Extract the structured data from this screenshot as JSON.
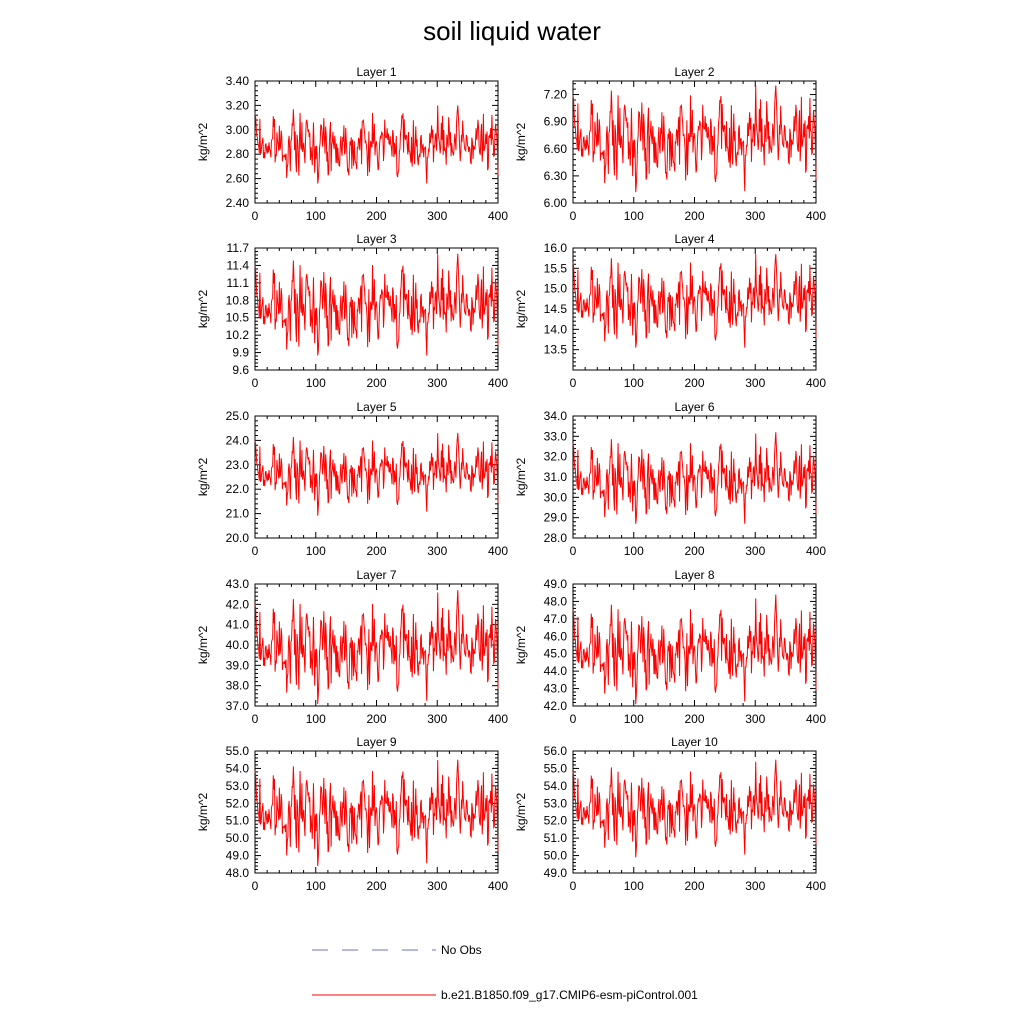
{
  "title": "soil liquid water",
  "legend": {
    "obs_label": "No Obs",
    "case_label": "b.e21.B1850.f09_g17.CMIP6-esm-piControl.001",
    "obs_color": "#6f6fc8",
    "case_color": "#ff0000"
  },
  "chart_data": [
    {
      "type": "line",
      "title": "Layer 1",
      "ylabel": "kg/m^2",
      "xlim": [
        0,
        400
      ],
      "ylim": [
        2.4,
        3.4
      ],
      "xticks": [
        0,
        100,
        200,
        300,
        400
      ],
      "ytick_labels": [
        "2.40",
        "2.60",
        "2.80",
        "3.00",
        "3.20",
        "3.40"
      ],
      "series": [
        {
          "color": "#ff0000",
          "mean": 2.88,
          "sd": 0.11,
          "min": 2.56,
          "max": 3.2,
          "n": 400
        }
      ]
    },
    {
      "type": "line",
      "title": "Layer 2",
      "ylabel": "kg/m^2",
      "xlim": [
        0,
        400
      ],
      "ylim": [
        6.0,
        7.35
      ],
      "xticks": [
        0,
        100,
        200,
        300,
        400
      ],
      "ytick_labels": [
        "6.00",
        "6.30",
        "6.60",
        "6.90",
        "7.20"
      ],
      "series": [
        {
          "color": "#ff0000",
          "mean": 6.72,
          "sd": 0.2,
          "min": 6.12,
          "max": 7.3,
          "n": 400
        }
      ]
    },
    {
      "type": "line",
      "title": "Layer 3",
      "ylabel": "kg/m^2",
      "xlim": [
        0,
        400
      ],
      "ylim": [
        9.6,
        11.7
      ],
      "xticks": [
        0,
        100,
        200,
        300,
        400
      ],
      "ytick_labels": [
        "9.6",
        "9.9",
        "10.2",
        "10.5",
        "10.8",
        "11.1",
        "11.4",
        "11.7"
      ],
      "series": [
        {
          "color": "#ff0000",
          "mean": 10.7,
          "sd": 0.3,
          "min": 9.85,
          "max": 11.6,
          "n": 400
        }
      ]
    },
    {
      "type": "line",
      "title": "Layer 4",
      "ylabel": "kg/m^2",
      "xlim": [
        0,
        400
      ],
      "ylim": [
        13.0,
        16.0
      ],
      "xticks": [
        0,
        100,
        200,
        300,
        400
      ],
      "ytick_labels": [
        "13.5",
        "14.0",
        "14.5",
        "15.0",
        "15.5",
        "16.0"
      ],
      "series": [
        {
          "color": "#ff0000",
          "mean": 14.7,
          "sd": 0.4,
          "min": 13.55,
          "max": 15.85,
          "n": 400
        }
      ]
    },
    {
      "type": "line",
      "title": "Layer 5",
      "ylabel": "kg/m^2",
      "xlim": [
        0,
        400
      ],
      "ylim": [
        20.0,
        25.0
      ],
      "xticks": [
        0,
        100,
        200,
        300,
        400
      ],
      "ytick_labels": [
        "20.0",
        "21.0",
        "22.0",
        "23.0",
        "24.0",
        "25.0"
      ],
      "series": [
        {
          "color": "#ff0000",
          "mean": 22.7,
          "sd": 0.55,
          "min": 20.9,
          "max": 24.3,
          "n": 400
        }
      ]
    },
    {
      "type": "line",
      "title": "Layer 6",
      "ylabel": "kg/m^2",
      "xlim": [
        0,
        400
      ],
      "ylim": [
        28.0,
        34.0
      ],
      "xticks": [
        0,
        100,
        200,
        300,
        400
      ],
      "ytick_labels": [
        "28.0",
        "29.0",
        "30.0",
        "31.0",
        "32.0",
        "33.0",
        "34.0"
      ],
      "series": [
        {
          "color": "#ff0000",
          "mean": 30.9,
          "sd": 0.75,
          "min": 28.7,
          "max": 33.2,
          "n": 400
        }
      ]
    },
    {
      "type": "line",
      "title": "Layer 7",
      "ylabel": "kg/m^2",
      "xlim": [
        0,
        400
      ],
      "ylim": [
        37.0,
        43.0
      ],
      "xticks": [
        0,
        100,
        200,
        300,
        400
      ],
      "ytick_labels": [
        "37.0",
        "38.0",
        "39.0",
        "40.0",
        "41.0",
        "42.0",
        "43.0"
      ],
      "series": [
        {
          "color": "#ff0000",
          "mean": 39.9,
          "sd": 0.9,
          "min": 37.1,
          "max": 42.7,
          "n": 400
        }
      ]
    },
    {
      "type": "line",
      "title": "Layer 8",
      "ylabel": "kg/m^2",
      "xlim": [
        0,
        400
      ],
      "ylim": [
        42.0,
        49.0
      ],
      "xticks": [
        0,
        100,
        200,
        300,
        400
      ],
      "ytick_labels": [
        "42.0",
        "43.0",
        "44.0",
        "45.0",
        "46.0",
        "47.0",
        "48.0",
        "49.0"
      ],
      "series": [
        {
          "color": "#ff0000",
          "mean": 45.2,
          "sd": 1.0,
          "min": 42.1,
          "max": 48.4,
          "n": 400
        }
      ]
    },
    {
      "type": "line",
      "title": "Layer 9",
      "ylabel": "kg/m^2",
      "xlim": [
        0,
        400
      ],
      "ylim": [
        48.0,
        55.0
      ],
      "xticks": [
        0,
        100,
        200,
        300,
        400
      ],
      "ytick_labels": [
        "48.0",
        "49.0",
        "50.0",
        "51.0",
        "52.0",
        "53.0",
        "54.0",
        "55.0"
      ],
      "series": [
        {
          "color": "#ff0000",
          "mean": 51.5,
          "sd": 1.0,
          "min": 48.4,
          "max": 54.5,
          "n": 400
        }
      ]
    },
    {
      "type": "line",
      "title": "Layer 10",
      "ylabel": "kg/m^2",
      "xlim": [
        0,
        400
      ],
      "ylim": [
        49.0,
        56.0
      ],
      "xticks": [
        0,
        100,
        200,
        300,
        400
      ],
      "ytick_labels": [
        "49.0",
        "50.0",
        "51.0",
        "52.0",
        "53.0",
        "54.0",
        "55.0",
        "56.0"
      ],
      "series": [
        {
          "color": "#ff0000",
          "mean": 52.7,
          "sd": 0.9,
          "min": 49.9,
          "max": 55.5,
          "n": 400
        }
      ]
    }
  ]
}
